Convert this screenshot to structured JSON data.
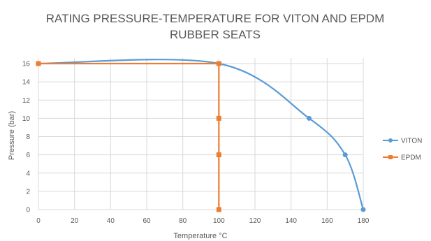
{
  "chart_data": {
    "type": "line",
    "title": "RATING PRESSURE-TEMPERATURE FOR VITON AND EPDM",
    "subtitle": "RUBBER SEATS",
    "xlabel": "Temperature °C",
    "ylabel": "Pressure (bar)",
    "xlim": [
      0,
      180
    ],
    "ylim": [
      0,
      16
    ],
    "xticks": [
      0,
      20,
      40,
      60,
      80,
      100,
      120,
      140,
      160,
      180
    ],
    "yticks": [
      0,
      2,
      4,
      6,
      8,
      10,
      12,
      14,
      16
    ],
    "grid": true,
    "legend_position": "right",
    "series": [
      {
        "name": "VITON",
        "color": "#5b9bd5",
        "smooth": true,
        "points": [
          [
            0,
            16
          ],
          [
            100,
            16
          ],
          [
            150,
            10
          ],
          [
            170,
            6
          ],
          [
            180,
            0
          ]
        ]
      },
      {
        "name": "EPDM",
        "color": "#ed7d31",
        "smooth": false,
        "points": [
          [
            0,
            16
          ],
          [
            100,
            16
          ],
          [
            100,
            10
          ],
          [
            100,
            6
          ],
          [
            100,
            0
          ]
        ]
      }
    ]
  }
}
